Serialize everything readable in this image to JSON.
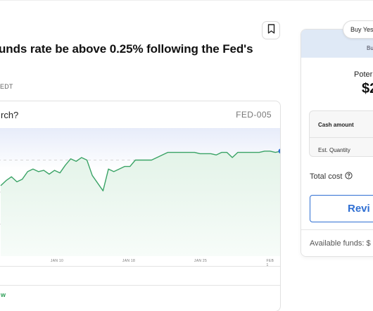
{
  "market": {
    "title": "unds rate be above 0.25% following the Fed's",
    "close_time": "EDT"
  },
  "chart_card": {
    "question": "rch?",
    "ticker": "FED-005",
    "bottom_link": "w"
  },
  "chart_data": {
    "type": "line",
    "x_tick_labels": [
      "JAN 10",
      "JAN 18",
      "JAN 25",
      "FEB 1"
    ],
    "series": [
      {
        "color": "#3aa366",
        "values": [
          55,
          59,
          62,
          58,
          60,
          66,
          68,
          66,
          67,
          64,
          67,
          65,
          71,
          76,
          74,
          77,
          75,
          63,
          57,
          51,
          68,
          66,
          68,
          70,
          70,
          75,
          75,
          75,
          75,
          77,
          79,
          81,
          81,
          81,
          81,
          81,
          81,
          80,
          80,
          80,
          79,
          81,
          81,
          77,
          81,
          81,
          81,
          81,
          81,
          82,
          82,
          81,
          82
        ]
      }
    ],
    "ylim": [
      0,
      100
    ],
    "grid": "dashed horizontal"
  },
  "order_panel": {
    "tab_label": "Buy Yes",
    "side_label": "Bu",
    "payout_label": "Poter",
    "payout_value": "$2",
    "cash_amount_label": "Cash amount",
    "quantity_label": "Est. Quantity",
    "total_cost_label": "Total cost",
    "review_label": "Revi",
    "available_funds": "Available funds: $"
  },
  "colors": {
    "line": "#3aa366",
    "accent_blue": "#2f6fd3",
    "panel_header": "#dfe9f6"
  },
  "icons": {
    "bookmark": "bookmark-icon",
    "info": "question-circle-icon"
  }
}
